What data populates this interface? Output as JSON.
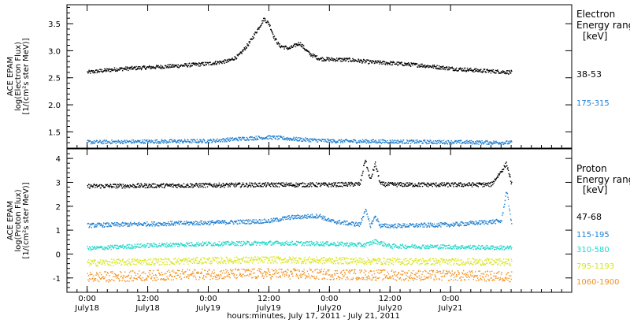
{
  "chart_data": [
    {
      "type": "scatter",
      "panel": "electron",
      "ylabel_lines": [
        "ACE EPAM",
        "log(Electron Flux)",
        "[1/(cm²s ster MeV)]"
      ],
      "ylim": [
        1.2,
        3.85
      ],
      "yticks": [
        "1.5",
        "2.0",
        "2.5",
        "3.0",
        "3.5"
      ],
      "ytick_values": [
        1.5,
        2.0,
        2.5,
        3.0,
        3.5
      ],
      "legend_title": [
        "Electron",
        "Energy range",
        "[keV]"
      ],
      "series": [
        {
          "name": "38-53",
          "color": "#000000",
          "x": [
            0,
            6,
            12,
            18,
            24,
            28,
            30,
            32,
            34,
            35,
            36,
            37,
            38,
            40,
            42,
            44,
            46,
            48,
            52,
            56,
            60,
            66,
            72,
            78,
            84
          ],
          "y": [
            2.61,
            2.67,
            2.7,
            2.73,
            2.77,
            2.82,
            2.92,
            3.15,
            3.45,
            3.6,
            3.5,
            3.25,
            3.1,
            3.05,
            3.15,
            2.95,
            2.86,
            2.85,
            2.84,
            2.8,
            2.78,
            2.74,
            2.68,
            2.64,
            2.61
          ]
        },
        {
          "name": "175-315",
          "color": "#1f7fd0",
          "x": [
            0,
            12,
            24,
            30,
            36,
            42,
            48,
            60,
            72,
            84
          ],
          "y": [
            1.32,
            1.33,
            1.34,
            1.38,
            1.41,
            1.37,
            1.34,
            1.33,
            1.32,
            1.31
          ]
        }
      ]
    },
    {
      "type": "scatter",
      "panel": "proton",
      "ylabel_lines": [
        "ACE EPAM",
        "log(Proton Flux)",
        "[1/(cm²s ster MeV)]"
      ],
      "ylim": [
        -1.6,
        4.4
      ],
      "yticks": [
        "-1",
        "0",
        "1",
        "2",
        "3",
        "4"
      ],
      "ytick_values": [
        -1,
        0,
        1,
        2,
        3,
        4
      ],
      "legend_title": [
        "Proton",
        "Energy range",
        "[keV]"
      ],
      "series": [
        {
          "name": "47-68",
          "color": "#000000",
          "x": [
            0,
            12,
            24,
            36,
            48,
            54,
            55,
            56,
            57,
            58,
            60,
            72,
            80,
            82,
            83,
            84
          ],
          "y": [
            2.86,
            2.88,
            2.9,
            2.92,
            2.92,
            2.95,
            4.0,
            3.1,
            3.8,
            2.95,
            2.93,
            2.92,
            2.93,
            3.5,
            3.8,
            2.95
          ]
        },
        {
          "name": "115-195",
          "color": "#1f7fd0",
          "x": [
            0,
            12,
            24,
            36,
            40,
            44,
            46,
            48,
            54,
            55,
            56,
            57,
            58,
            60,
            72,
            82,
            83,
            84
          ],
          "y": [
            1.22,
            1.28,
            1.33,
            1.4,
            1.55,
            1.6,
            1.62,
            1.4,
            1.25,
            1.9,
            1.2,
            1.6,
            1.2,
            1.2,
            1.25,
            1.4,
            2.7,
            1.3
          ]
        },
        {
          "name": "310-580",
          "color": "#1fd6c8",
          "x": [
            0,
            12,
            24,
            36,
            48,
            55,
            57,
            60,
            72,
            84
          ],
          "y": [
            0.25,
            0.38,
            0.45,
            0.48,
            0.45,
            0.4,
            0.55,
            0.35,
            0.32,
            0.28
          ]
        },
        {
          "name": "795-1193",
          "color": "#d8e61a",
          "x": [
            0,
            12,
            24,
            36,
            48,
            60,
            72,
            84
          ],
          "y": [
            -0.35,
            -0.3,
            -0.25,
            -0.22,
            -0.25,
            -0.28,
            -0.3,
            -0.32
          ]
        },
        {
          "name": "1060-1900",
          "color": "#f2901c",
          "x": [
            0,
            12,
            24,
            36,
            48,
            60,
            72,
            84
          ],
          "y": [
            -0.95,
            -0.88,
            -0.82,
            -0.8,
            -0.83,
            -0.86,
            -0.88,
            -0.92
          ]
        }
      ]
    }
  ],
  "x_axis": {
    "xlim": [
      -4,
      96
    ],
    "ticks": [
      {
        "x": 0,
        "time": "0:00",
        "date": "July18"
      },
      {
        "x": 12,
        "time": "12:00",
        "date": "July18"
      },
      {
        "x": 24,
        "time": "0:00",
        "date": "July19"
      },
      {
        "x": 36,
        "time": "12:00",
        "date": "July19"
      },
      {
        "x": 48,
        "time": "0:00",
        "date": "July20"
      },
      {
        "x": 60,
        "time": "12:00",
        "date": "July20"
      },
      {
        "x": 72,
        "time": "0:00",
        "date": "July21"
      }
    ],
    "xlabel": "hours:minutes, July 17, 2011 - July 21, 2011"
  }
}
